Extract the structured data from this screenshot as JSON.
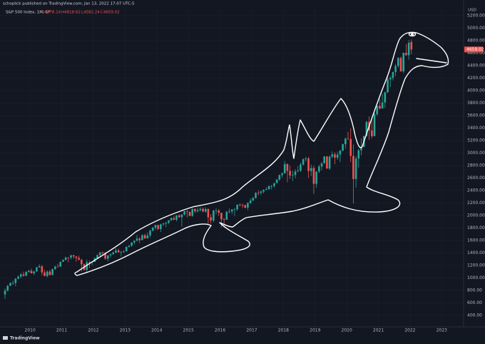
{
  "chart_data": {
    "type": "candlestick",
    "header": "schoplick published on TradingView.com, Jan 13, 2022 17:07 UTC-5",
    "legend_title": "S&P 500 Index, 1M, SP",
    "legend_values": [
      "O4778.14",
      "H4818.62",
      "L4582.24",
      "C4659.02"
    ],
    "last_price_label": "4659.02",
    "y_unit": "USD",
    "footer": "TradingView",
    "up_color": "#26a69a",
    "down_color": "#ef5350",
    "grid": true,
    "x": [
      "2009-03",
      "2009-04",
      "2009-05",
      "2009-06",
      "2009-07",
      "2009-08",
      "2009-09",
      "2009-10",
      "2009-11",
      "2009-12",
      "2010-01",
      "2010-02",
      "2010-03",
      "2010-04",
      "2010-05",
      "2010-06",
      "2010-07",
      "2010-08",
      "2010-09",
      "2010-10",
      "2010-11",
      "2010-12",
      "2011-01",
      "2011-02",
      "2011-03",
      "2011-04",
      "2011-05",
      "2011-06",
      "2011-07",
      "2011-08",
      "2011-09",
      "2011-10",
      "2011-11",
      "2011-12",
      "2012-01",
      "2012-02",
      "2012-03",
      "2012-04",
      "2012-05",
      "2012-06",
      "2012-07",
      "2012-08",
      "2012-09",
      "2012-10",
      "2012-11",
      "2012-12",
      "2013-01",
      "2013-02",
      "2013-03",
      "2013-04",
      "2013-05",
      "2013-06",
      "2013-07",
      "2013-08",
      "2013-09",
      "2013-10",
      "2013-11",
      "2013-12",
      "2014-01",
      "2014-02",
      "2014-03",
      "2014-04",
      "2014-05",
      "2014-06",
      "2014-07",
      "2014-08",
      "2014-09",
      "2014-10",
      "2014-11",
      "2014-12",
      "2015-01",
      "2015-02",
      "2015-03",
      "2015-04",
      "2015-05",
      "2015-06",
      "2015-07",
      "2015-08",
      "2015-09",
      "2015-10",
      "2015-11",
      "2015-12",
      "2016-01",
      "2016-02",
      "2016-03",
      "2016-04",
      "2016-05",
      "2016-06",
      "2016-07",
      "2016-08",
      "2016-09",
      "2016-10",
      "2016-11",
      "2016-12",
      "2017-01",
      "2017-02",
      "2017-03",
      "2017-04",
      "2017-05",
      "2017-06",
      "2017-07",
      "2017-08",
      "2017-09",
      "2017-10",
      "2017-11",
      "2017-12",
      "2018-01",
      "2018-02",
      "2018-03",
      "2018-04",
      "2018-05",
      "2018-06",
      "2018-07",
      "2018-08",
      "2018-09",
      "2018-10",
      "2018-11",
      "2018-12",
      "2019-01",
      "2019-02",
      "2019-03",
      "2019-04",
      "2019-05",
      "2019-06",
      "2019-07",
      "2019-08",
      "2019-09",
      "2019-10",
      "2019-11",
      "2019-12",
      "2020-01",
      "2020-02",
      "2020-03",
      "2020-04",
      "2020-05",
      "2020-06",
      "2020-07",
      "2020-08",
      "2020-09",
      "2020-10",
      "2020-11",
      "2020-12",
      "2021-01",
      "2021-02",
      "2021-03",
      "2021-04",
      "2021-05",
      "2021-06",
      "2021-07",
      "2021-08",
      "2021-09",
      "2021-10",
      "2021-11",
      "2021-12",
      "2022-01"
    ],
    "open": [
      735,
      798,
      873,
      919,
      919,
      987,
      1021,
      1057,
      1036,
      1096,
      1115,
      1074,
      1104,
      1169,
      1187,
      1089,
      1031,
      1102,
      1049,
      1141,
      1183,
      1181,
      1258,
      1286,
      1327,
      1326,
      1364,
      1345,
      1321,
      1292,
      1219,
      1131,
      1253,
      1247,
      1258,
      1312,
      1366,
      1408,
      1398,
      1310,
      1362,
      1379,
      1407,
      1441,
      1412,
      1416,
      1426,
      1498,
      1515,
      1569,
      1598,
      1631,
      1606,
      1686,
      1633,
      1682,
      1757,
      1806,
      1848,
      1783,
      1859,
      1872,
      1884,
      1924,
      1960,
      1931,
      2003,
      1972,
      2018,
      2068,
      2059,
      1995,
      2105,
      2068,
      2086,
      2107,
      2063,
      2104,
      1972,
      1920,
      2079,
      2080,
      2044,
      1940,
      1932,
      2060,
      2065,
      2097,
      2099,
      2174,
      2171,
      2168,
      2126,
      2199,
      2239,
      2279,
      2364,
      2363,
      2384,
      2412,
      2423,
      2470,
      2472,
      2519,
      2575,
      2648,
      2674,
      2824,
      2714,
      2641,
      2648,
      2705,
      2718,
      2816,
      2902,
      2914,
      2712,
      2760,
      2507,
      2704,
      2784,
      2834,
      2946,
      2752,
      2942,
      2980,
      2926,
      2977,
      3038,
      3141,
      3231,
      3226,
      2954,
      2585,
      2912,
      3044,
      3100,
      3271,
      3500,
      3363,
      3270,
      3622,
      3756,
      3714,
      3811,
      3973,
      4181,
      4204,
      4298,
      4395,
      4523,
      4308,
      4605,
      4567,
      4778.14
    ],
    "high": [
      832,
      888,
      930,
      956,
      997,
      1040,
      1080,
      1101,
      1113,
      1130,
      1150,
      1113,
      1180,
      1220,
      1206,
      1132,
      1120,
      1130,
      1150,
      1196,
      1227,
      1263,
      1302,
      1344,
      1333,
      1370,
      1371,
      1346,
      1357,
      1308,
      1230,
      1293,
      1278,
      1270,
      1333,
      1378,
      1419,
      1422,
      1416,
      1363,
      1392,
      1426,
      1475,
      1470,
      1434,
      1448,
      1504,
      1530,
      1570,
      1600,
      1687,
      1654,
      1698,
      1709,
      1730,
      1771,
      1814,
      1849,
      1850,
      1867,
      1883,
      1897,
      1924,
      1968,
      1991,
      2005,
      2019,
      2018,
      2075,
      2093,
      2064,
      2119,
      2117,
      2125,
      2135,
      2130,
      2132,
      2113,
      2021,
      2094,
      2116,
      2104,
      2044,
      1962,
      2072,
      2111,
      2103,
      2120,
      2178,
      2193,
      2188,
      2169,
      2214,
      2278,
      2301,
      2371,
      2401,
      2398,
      2418,
      2454,
      2484,
      2491,
      2520,
      2582,
      2657,
      2695,
      2873,
      2836,
      2802,
      2717,
      2742,
      2791,
      2848,
      2916,
      2941,
      2940,
      2815,
      2800,
      2708,
      2813,
      2861,
      2949,
      2954,
      2964,
      3028,
      3013,
      3022,
      3050,
      3154,
      3248,
      3338,
      3393,
      3137,
      2954,
      3068,
      3233,
      3280,
      3514,
      3588,
      3550,
      3646,
      3760,
      3870,
      3950,
      3981,
      4218,
      4238,
      4302,
      4429,
      4537,
      4546,
      4608,
      4744,
      4808,
      4818.62
    ],
    "low": [
      667,
      784,
      879,
      888,
      869,
      978,
      992,
      1020,
      1029,
      1086,
      1071,
      1045,
      1101,
      1165,
      1040,
      1028,
      1011,
      1040,
      1040,
      1131,
      1173,
      1180,
      1257,
      1285,
      1249,
      1294,
      1311,
      1258,
      1283,
      1101,
      1114,
      1074,
      1158,
      1202,
      1258,
      1311,
      1341,
      1357,
      1291,
      1267,
      1325,
      1378,
      1396,
      1403,
      1343,
      1398,
      1426,
      1485,
      1501,
      1537,
      1581,
      1560,
      1605,
      1627,
      1633,
      1646,
      1746,
      1768,
      1770,
      1737,
      1834,
      1814,
      1860,
      1915,
      1930,
      1904,
      1964,
      1821,
      2001,
      1972,
      1988,
      1980,
      2039,
      2048,
      2067,
      2056,
      2044,
      1867,
      1872,
      1893,
      2019,
      1993,
      1812,
      1810,
      1931,
      2034,
      2025,
      1992,
      2074,
      2147,
      2119,
      2114,
      2084,
      2188,
      2233,
      2271,
      2322,
      2329,
      2353,
      2405,
      2408,
      2418,
      2446,
      2520,
      2557,
      2605,
      2683,
      2533,
      2586,
      2553,
      2595,
      2699,
      2699,
      2802,
      2864,
      2604,
      2631,
      2347,
      2444,
      2681,
      2722,
      2848,
      2750,
      2729,
      2915,
      2822,
      2892,
      2855,
      3030,
      3070,
      3215,
      2855,
      2192,
      2448,
      2766,
      2966,
      3090,
      3284,
      3210,
      3233,
      3280,
      3594,
      3694,
      3725,
      3723,
      3962,
      4056,
      4164,
      4233,
      4367,
      4306,
      4279,
      4560,
      4496,
      4582.24
    ],
    "close": [
      798,
      873,
      919,
      919,
      987,
      1021,
      1057,
      1036,
      1096,
      1115,
      1074,
      1104,
      1169,
      1187,
      1089,
      1031,
      1102,
      1049,
      1141,
      1183,
      1181,
      1258,
      1286,
      1327,
      1326,
      1364,
      1345,
      1321,
      1292,
      1219,
      1131,
      1253,
      1247,
      1258,
      1312,
      1366,
      1408,
      1398,
      1310,
      1362,
      1379,
      1407,
      1441,
      1412,
      1416,
      1426,
      1498,
      1515,
      1569,
      1598,
      1631,
      1606,
      1686,
      1633,
      1682,
      1757,
      1806,
      1848,
      1783,
      1859,
      1872,
      1884,
      1924,
      1960,
      1931,
      2003,
      1972,
      2018,
      2068,
      2059,
      1995,
      2105,
      2068,
      2086,
      2107,
      2063,
      2104,
      1972,
      1920,
      2079,
      2080,
      2044,
      1940,
      1932,
      2060,
      2065,
      2097,
      2099,
      2174,
      2171,
      2168,
      2126,
      2199,
      2239,
      2279,
      2364,
      2363,
      2384,
      2412,
      2423,
      2470,
      2472,
      2519,
      2575,
      2648,
      2674,
      2824,
      2714,
      2641,
      2648,
      2705,
      2718,
      2816,
      2902,
      2914,
      2712,
      2760,
      2507,
      2704,
      2784,
      2834,
      2946,
      2752,
      2942,
      2980,
      2926,
      2977,
      3038,
      3141,
      3231,
      3226,
      2954,
      2585,
      2912,
      3044,
      3100,
      3271,
      3500,
      3363,
      3270,
      3622,
      3756,
      3714,
      3811,
      3973,
      4181,
      4204,
      4298,
      4395,
      4523,
      4308,
      4605,
      4567,
      4766,
      4659.02
    ],
    "xlim": [
      2009.05,
      2023.69
    ],
    "xticks": [
      2010,
      2011,
      2012,
      2013,
      2014,
      2015,
      2016,
      2017,
      2018,
      2019,
      2020,
      2021,
      2022,
      2023
    ],
    "ylim": [
      217,
      5291
    ],
    "yticks": [
      {
        "value": 400,
        "label": "400.00"
      },
      {
        "value": 600,
        "label": "600.00"
      },
      {
        "value": 800,
        "label": "800.00"
      },
      {
        "value": 1000,
        "label": "1000.00"
      },
      {
        "value": 1200,
        "label": "1200.00"
      },
      {
        "value": 1400,
        "label": "1400.00"
      },
      {
        "value": 1600,
        "label": "1600.00"
      },
      {
        "value": 1800,
        "label": "1800.00"
      },
      {
        "value": 2000,
        "label": "2000.00"
      },
      {
        "value": 2200,
        "label": "2200.00"
      },
      {
        "value": 2400,
        "label": "2400.00"
      },
      {
        "value": 2600,
        "label": "2600.00"
      },
      {
        "value": 2800,
        "label": "2800.00"
      },
      {
        "value": 3000,
        "label": "3000.00"
      },
      {
        "value": 3200,
        "label": "3200.00"
      },
      {
        "value": 3400,
        "label": "3400.00"
      },
      {
        "value": 3600,
        "label": "3600.00"
      },
      {
        "value": 3800,
        "label": "3800.00"
      },
      {
        "value": 4000,
        "label": "4000.00"
      },
      {
        "value": 4200,
        "label": "4200.00"
      },
      {
        "value": 4400,
        "label": "4400.00"
      },
      {
        "value": 4600,
        "label": "4600.00"
      },
      {
        "value": 4800,
        "label": "4800.00"
      },
      {
        "value": 5000,
        "label": "5000.00"
      },
      {
        "value": 5200,
        "label": "5200.00"
      }
    ]
  }
}
